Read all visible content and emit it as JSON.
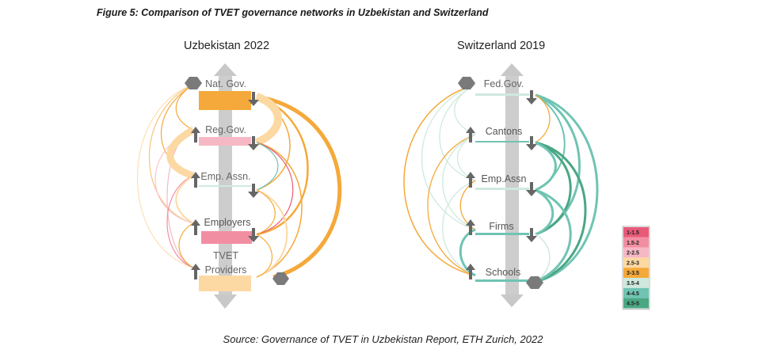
{
  "figure_title": "Figure 5: Comparison of TVET governance networks in Uzbekistan and Switzerland",
  "source": "Source: Governance of TVET in Uzbekistan Report, ETH Zurich, 2022",
  "colors": {
    "1-1.5": "#e85a78",
    "1.5-2": "#f28ea2",
    "2-2.5": "#f6b8c4",
    "2.5-3": "#fcd9a3",
    "3-3.5": "#f5a93a",
    "3.5-4": "#cfe9df",
    "4-4.5": "#6fc4b2",
    "4.5-5": "#4aa784"
  },
  "legend": [
    {
      "label": "1-1.5",
      "color": "#e85a78"
    },
    {
      "label": "1.5-2",
      "color": "#f28ea2"
    },
    {
      "label": "2-2.5",
      "color": "#f6b8c4"
    },
    {
      "label": "2.5-3",
      "color": "#fcd9a3"
    },
    {
      "label": "3-3.5",
      "color": "#f5a93a"
    },
    {
      "label": "3.5-4",
      "color": "#cfe9df"
    },
    {
      "label": "4-4.5",
      "color": "#6fc4b2"
    },
    {
      "label": "4.5-5",
      "color": "#4aa784"
    }
  ],
  "uzbekistan": {
    "title": "Uzbekistan 2022",
    "nodes": [
      "Nat. Gov.",
      "Reg.Gov.",
      "Emp. Assn.",
      "Employers",
      "TVET",
      "Providers"
    ]
  },
  "switzerland": {
    "title": "Switzerland 2019",
    "nodes": [
      "Fed.Gov.",
      "Cantons",
      "Emp.Assn",
      "Firms",
      "Schools"
    ]
  }
}
